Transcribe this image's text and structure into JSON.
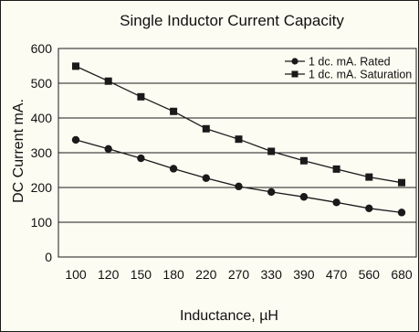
{
  "chart_data": {
    "type": "line",
    "title": "Single Inductor Current Capacity",
    "xlabel": "Inductance, µH",
    "ylabel": "DC Current mA.",
    "categories": [
      "100",
      "120",
      "150",
      "180",
      "220",
      "270",
      "330",
      "390",
      "470",
      "560",
      "680"
    ],
    "ylim": [
      0,
      600
    ],
    "yticks": [
      "0",
      "100",
      "200",
      "300",
      "400",
      "500",
      "600"
    ],
    "grid": "horizontal",
    "legend_position": "top-right",
    "series": [
      {
        "name": "1 dc. mA. Rated",
        "marker": "circle",
        "values": [
          337,
          311,
          284,
          254,
          227,
          203,
          187,
          173,
          157,
          140,
          128
        ]
      },
      {
        "name": "1 dc. mA. Saturation",
        "marker": "square",
        "values": [
          549,
          506,
          461,
          419,
          369,
          339,
          304,
          277,
          253,
          230,
          214
        ]
      }
    ],
    "colors": {
      "line": "#1a1a1a",
      "background": "#fdfcf2",
      "grid": "#1a1a1a"
    }
  }
}
